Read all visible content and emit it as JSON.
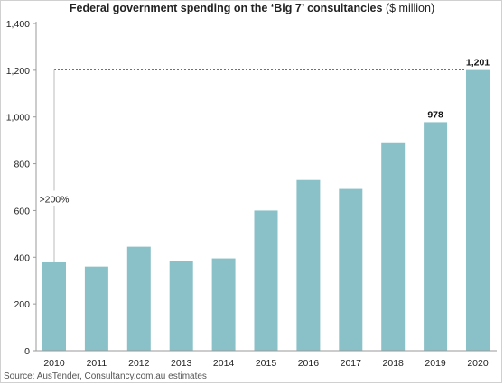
{
  "chart_data": {
    "type": "bar",
    "title": "Federal government spending on the ‘Big 7’ consultancies",
    "title_unit": "($ million)",
    "categories": [
      "2010",
      "2011",
      "2012",
      "2013",
      "2014",
      "2015",
      "2016",
      "2017",
      "2018",
      "2019",
      "2020"
    ],
    "values": [
      378,
      360,
      445,
      385,
      395,
      600,
      730,
      692,
      888,
      978,
      1201
    ],
    "data_labels": {
      "9": "978",
      "10": "1,201"
    },
    "ylim": [
      0,
      1400
    ],
    "yticks": [
      0,
      200,
      400,
      600,
      800,
      1000,
      1200,
      1400
    ],
    "ytick_labels": [
      "0",
      "200",
      "400",
      "600",
      "800",
      "1,000",
      "1,200",
      "1,400"
    ],
    "annotation": ">200%",
    "grid": false,
    "source": "Source: AusTender, Consultancy.com.au estimates"
  },
  "colors": {
    "bar": "#8ac1c8",
    "axis": "#9a9a9a",
    "annotation_line": "#444444"
  }
}
